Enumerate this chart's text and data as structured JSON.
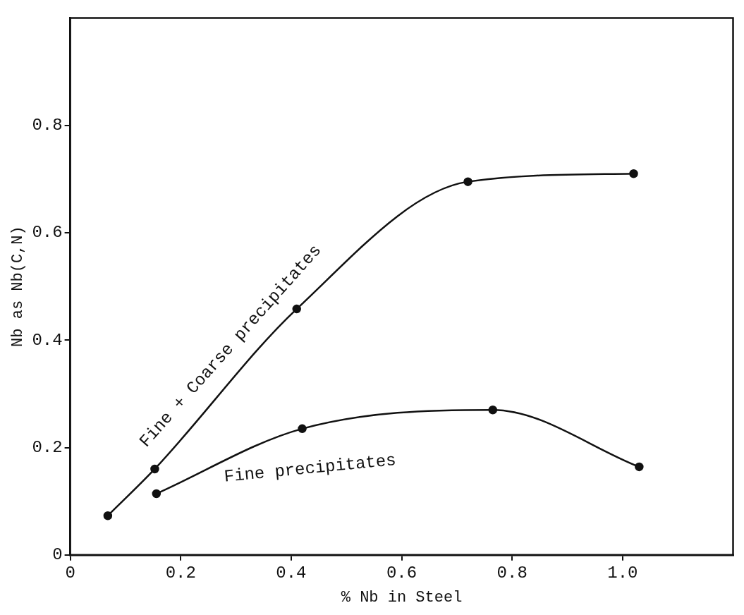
{
  "chart_data": {
    "type": "line",
    "xlabel": "% Nb in Steel",
    "ylabel": "Nb as Nb(C,N)",
    "xlim": [
      0,
      1.2
    ],
    "ylim": [
      0,
      1.0
    ],
    "xticks": [
      0,
      0.2,
      0.4,
      0.6,
      0.8,
      {
        "value": 1.0,
        "label": "1.0"
      }
    ],
    "yticks": [
      0,
      0.2,
      0.4,
      0.6,
      0.8
    ],
    "grid": false,
    "legend": false,
    "marker": "circle",
    "line_style": "solid",
    "series": [
      {
        "name": "Fine + Coarse precipitates",
        "color": "#111111",
        "x": [
          0.068,
          0.153,
          0.41,
          0.72,
          1.02
        ],
        "values": [
          0.073,
          0.16,
          0.458,
          0.695,
          0.71
        ]
      },
      {
        "name": "Fine precipitates",
        "color": "#111111",
        "x": [
          0.156,
          0.42,
          0.765,
          1.03
        ],
        "values": [
          0.114,
          0.235,
          0.27,
          0.164
        ]
      }
    ]
  }
}
